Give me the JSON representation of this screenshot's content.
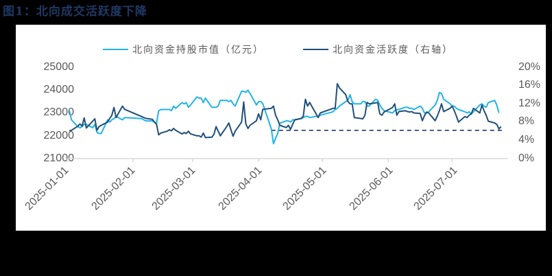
{
  "title": "图1：北向成交活跃度下降",
  "colors": {
    "background": "#000000",
    "panel": "#ffffff",
    "title": "#1f3864",
    "holdings": "#1fb3e8",
    "activity": "#1f4e79",
    "axis": "#d9d9d9",
    "tick_text": "#595959"
  },
  "legend": [
    {
      "label": "北向资金持股市值（亿元）",
      "color": "#1fb3e8"
    },
    {
      "label": "北向资金活跃度（右轴）",
      "color": "#1f4e79"
    }
  ],
  "chart_data": {
    "type": "line",
    "title": "北向成交活跃度下降",
    "xlabel": "",
    "ylabel_left": "北向资金持股市值（亿元）",
    "ylabel_right": "北向资金活跃度",
    "x_ticks": [
      "2025-01-01",
      "2025-02-01",
      "2025-03-01",
      "2025-04-01",
      "2025-05-01",
      "2025-06-01",
      "2025-07-01"
    ],
    "y_left": {
      "ticks": [
        "25000",
        "24000",
        "23000",
        "22000",
        "21000"
      ],
      "range": [
        21000,
        25000
      ]
    },
    "y_right": {
      "ticks": [
        "20%",
        "16%",
        "12%",
        "8%",
        "4%",
        "0%"
      ],
      "range": [
        0,
        20
      ]
    },
    "grid": false,
    "legend_position": "top",
    "reference_line": {
      "axis": "right",
      "value": 6.2,
      "style": "dashed",
      "from": "2025-04-07",
      "to": "2025-07-25"
    },
    "series": [
      {
        "name": "北向资金持股市值（亿元）",
        "axis": "left",
        "points": [
          [
            "2025-01-02",
            23100
          ],
          [
            "2025-01-03",
            22700
          ],
          [
            "2025-01-06",
            22400
          ],
          [
            "2025-01-07",
            22350
          ],
          [
            "2025-01-08",
            22400
          ],
          [
            "2025-01-09",
            22500
          ],
          [
            "2025-01-10",
            22500
          ],
          [
            "2025-01-13",
            22350
          ],
          [
            "2025-01-14",
            22500
          ],
          [
            "2025-01-15",
            22150
          ],
          [
            "2025-01-16",
            22100
          ],
          [
            "2025-01-17",
            22100
          ],
          [
            "2025-01-20",
            22700
          ],
          [
            "2025-01-21",
            22600
          ],
          [
            "2025-01-22",
            22700
          ],
          [
            "2025-01-23",
            22750
          ],
          [
            "2025-01-24",
            22850
          ],
          [
            "2025-01-27",
            22700
          ],
          [
            "2025-01-28",
            22800
          ],
          [
            "2025-02-05",
            22750
          ],
          [
            "2025-02-06",
            22700
          ],
          [
            "2025-02-07",
            22650
          ],
          [
            "2025-02-10",
            22650
          ],
          [
            "2025-02-11",
            22600
          ],
          [
            "2025-02-12",
            22550
          ],
          [
            "2025-02-13",
            23100
          ],
          [
            "2025-02-14",
            23150
          ],
          [
            "2025-02-17",
            23150
          ],
          [
            "2025-02-18",
            23150
          ],
          [
            "2025-02-19",
            23100
          ],
          [
            "2025-02-20",
            23300
          ],
          [
            "2025-02-21",
            23200
          ],
          [
            "2025-02-24",
            23450
          ],
          [
            "2025-02-25",
            23400
          ],
          [
            "2025-02-26",
            23450
          ],
          [
            "2025-02-27",
            23250
          ],
          [
            "2025-02-28",
            23350
          ],
          [
            "2025-03-03",
            23700
          ],
          [
            "2025-03-04",
            23650
          ],
          [
            "2025-03-05",
            23650
          ],
          [
            "2025-03-06",
            23450
          ],
          [
            "2025-03-07",
            23650
          ],
          [
            "2025-03-10",
            23250
          ],
          [
            "2025-03-11",
            23250
          ],
          [
            "2025-03-12",
            23250
          ],
          [
            "2025-03-13",
            23300
          ],
          [
            "2025-03-14",
            23550
          ],
          [
            "2025-03-17",
            23550
          ],
          [
            "2025-03-18",
            23500
          ],
          [
            "2025-03-19",
            23550
          ],
          [
            "2025-03-20",
            23400
          ],
          [
            "2025-03-21",
            23300
          ],
          [
            "2025-03-24",
            23950
          ],
          [
            "2025-03-25",
            23950
          ],
          [
            "2025-03-26",
            23900
          ],
          [
            "2025-03-27",
            24000
          ],
          [
            "2025-03-28",
            23850
          ],
          [
            "2025-03-31",
            23350
          ],
          [
            "2025-04-01",
            23500
          ],
          [
            "2025-04-02",
            23500
          ],
          [
            "2025-04-03",
            23400
          ],
          [
            "2025-04-07",
            22300
          ],
          [
            "2025-04-08",
            21650
          ],
          [
            "2025-04-09",
            21900
          ],
          [
            "2025-04-10",
            22100
          ],
          [
            "2025-04-11",
            22550
          ],
          [
            "2025-04-14",
            22650
          ],
          [
            "2025-04-15",
            22650
          ],
          [
            "2025-04-16",
            22600
          ],
          [
            "2025-04-17",
            22700
          ],
          [
            "2025-04-18",
            22700
          ],
          [
            "2025-04-21",
            22750
          ],
          [
            "2025-04-22",
            22800
          ],
          [
            "2025-04-23",
            22850
          ],
          [
            "2025-04-24",
            22850
          ],
          [
            "2025-04-25",
            22800
          ],
          [
            "2025-04-28",
            22850
          ],
          [
            "2025-04-29",
            22850
          ],
          [
            "2025-04-30",
            22900
          ],
          [
            "2025-05-06",
            23050
          ],
          [
            "2025-05-07",
            23150
          ],
          [
            "2025-05-08",
            23200
          ],
          [
            "2025-05-09",
            23300
          ],
          [
            "2025-05-12",
            23500
          ],
          [
            "2025-05-13",
            23550
          ],
          [
            "2025-05-14",
            23800
          ],
          [
            "2025-05-15",
            23500
          ],
          [
            "2025-05-16",
            23400
          ],
          [
            "2025-05-19",
            23400
          ],
          [
            "2025-05-20",
            23500
          ],
          [
            "2025-05-21",
            23500
          ],
          [
            "2025-05-22",
            23300
          ],
          [
            "2025-05-23",
            23300
          ],
          [
            "2025-05-26",
            23600
          ],
          [
            "2025-05-27",
            23550
          ],
          [
            "2025-05-28",
            23350
          ],
          [
            "2025-05-29",
            23200
          ],
          [
            "2025-05-30",
            23100
          ],
          [
            "2025-06-03",
            23000
          ],
          [
            "2025-06-04",
            23100
          ],
          [
            "2025-06-05",
            23150
          ],
          [
            "2025-06-06",
            23150
          ],
          [
            "2025-06-09",
            23250
          ],
          [
            "2025-06-10",
            23250
          ],
          [
            "2025-06-11",
            23200
          ],
          [
            "2025-06-12",
            23200
          ],
          [
            "2025-06-13",
            23150
          ],
          [
            "2025-06-16",
            23300
          ],
          [
            "2025-06-17",
            23200
          ],
          [
            "2025-06-18",
            23000
          ],
          [
            "2025-06-19",
            23000
          ],
          [
            "2025-06-20",
            23050
          ],
          [
            "2025-06-23",
            23350
          ],
          [
            "2025-06-24",
            23550
          ],
          [
            "2025-06-25",
            23900
          ],
          [
            "2025-06-26",
            23850
          ],
          [
            "2025-06-27",
            23600
          ],
          [
            "2025-06-30",
            23400
          ],
          [
            "2025-07-01",
            23300
          ],
          [
            "2025-07-02",
            23300
          ],
          [
            "2025-07-03",
            23200
          ],
          [
            "2025-07-04",
            23150
          ],
          [
            "2025-07-07",
            23050
          ],
          [
            "2025-07-08",
            23000
          ],
          [
            "2025-07-09",
            23050
          ],
          [
            "2025-07-10",
            22950
          ],
          [
            "2025-07-11",
            23050
          ],
          [
            "2025-07-14",
            23350
          ],
          [
            "2025-07-15",
            23400
          ],
          [
            "2025-07-16",
            23300
          ],
          [
            "2025-07-17",
            23250
          ],
          [
            "2025-07-18",
            23450
          ],
          [
            "2025-07-21",
            23550
          ],
          [
            "2025-07-22",
            23350
          ],
          [
            "2025-07-23",
            23000
          ]
        ]
      },
      {
        "name": "北向资金活跃度（右轴）",
        "axis": "right",
        "points": [
          [
            "2025-01-02",
            6.1
          ],
          [
            "2025-01-03",
            6.2
          ],
          [
            "2025-01-06",
            7.1
          ],
          [
            "2025-01-07",
            7.6
          ],
          [
            "2025-01-08",
            7.1
          ],
          [
            "2025-01-09",
            8.9
          ],
          [
            "2025-01-10",
            6.7
          ],
          [
            "2025-01-13",
            8.2
          ],
          [
            "2025-01-14",
            8.7
          ],
          [
            "2025-01-15",
            6.2
          ],
          [
            "2025-01-16",
            7.0
          ],
          [
            "2025-01-17",
            7.3
          ],
          [
            "2025-01-20",
            8.0
          ],
          [
            "2025-01-21",
            8.8
          ],
          [
            "2025-01-22",
            9.5
          ],
          [
            "2025-01-23",
            11.2
          ],
          [
            "2025-01-24",
            9.0
          ],
          [
            "2025-01-27",
            11.5
          ],
          [
            "2025-01-28",
            10.8
          ],
          [
            "2025-02-05",
            9.2
          ],
          [
            "2025-02-06",
            9.0
          ],
          [
            "2025-02-07",
            8.8
          ],
          [
            "2025-02-10",
            8.6
          ],
          [
            "2025-02-11",
            8.0
          ],
          [
            "2025-02-12",
            7.5
          ],
          [
            "2025-02-13",
            5.2
          ],
          [
            "2025-02-14",
            5.6
          ],
          [
            "2025-02-17",
            6.0
          ],
          [
            "2025-02-18",
            6.3
          ],
          [
            "2025-02-19",
            6.1
          ],
          [
            "2025-02-20",
            6.6
          ],
          [
            "2025-02-21",
            6.2
          ],
          [
            "2025-02-24",
            5.4
          ],
          [
            "2025-02-25",
            5.7
          ],
          [
            "2025-02-26",
            5.5
          ],
          [
            "2025-02-27",
            6.0
          ],
          [
            "2025-02-28",
            5.4
          ],
          [
            "2025-03-03",
            5.0
          ],
          [
            "2025-03-04",
            5.0
          ],
          [
            "2025-03-05",
            4.7
          ],
          [
            "2025-03-06",
            5.6
          ],
          [
            "2025-03-07",
            4.6
          ],
          [
            "2025-03-10",
            4.7
          ],
          [
            "2025-03-11",
            5.3
          ],
          [
            "2025-03-12",
            7.0
          ],
          [
            "2025-03-13",
            6.0
          ],
          [
            "2025-03-14",
            5.0
          ],
          [
            "2025-03-17",
            7.0
          ],
          [
            "2025-03-18",
            7.8
          ],
          [
            "2025-03-19",
            6.3
          ],
          [
            "2025-03-20",
            4.9
          ],
          [
            "2025-03-21",
            6.0
          ],
          [
            "2025-03-24",
            8.0
          ],
          [
            "2025-03-25",
            12.4
          ],
          [
            "2025-03-26",
            7.6
          ],
          [
            "2025-03-27",
            6.6
          ],
          [
            "2025-03-28",
            7.3
          ],
          [
            "2025-03-31",
            8.3
          ],
          [
            "2025-04-01",
            9.8
          ],
          [
            "2025-04-02",
            8.5
          ],
          [
            "2025-04-03",
            10.8
          ],
          [
            "2025-04-07",
            11.0
          ],
          [
            "2025-04-08",
            11.5
          ],
          [
            "2025-04-09",
            9.5
          ],
          [
            "2025-04-10",
            8.5
          ],
          [
            "2025-04-11",
            7.3
          ],
          [
            "2025-04-14",
            6.8
          ],
          [
            "2025-04-15",
            7.3
          ],
          [
            "2025-04-16",
            6.4
          ],
          [
            "2025-04-17",
            7.5
          ],
          [
            "2025-04-18",
            8.5
          ],
          [
            "2025-04-21",
            8.8
          ],
          [
            "2025-04-22",
            9.3
          ],
          [
            "2025-04-23",
            13.0
          ],
          [
            "2025-04-24",
            11.5
          ],
          [
            "2025-04-25",
            12.3
          ],
          [
            "2025-04-28",
            9.8
          ],
          [
            "2025-04-29",
            9.0
          ],
          [
            "2025-04-30",
            10.0
          ],
          [
            "2025-05-06",
            11.0
          ],
          [
            "2025-05-07",
            11.0
          ],
          [
            "2025-05-08",
            16.4
          ],
          [
            "2025-05-09",
            15.5
          ],
          [
            "2025-05-12",
            14.0
          ],
          [
            "2025-05-13",
            12.5
          ],
          [
            "2025-05-14",
            12.0
          ],
          [
            "2025-05-15",
            12.0
          ],
          [
            "2025-05-16",
            9.0
          ],
          [
            "2025-05-19",
            8.8
          ],
          [
            "2025-05-20",
            8.7
          ],
          [
            "2025-05-21",
            9.5
          ],
          [
            "2025-05-22",
            12.3
          ],
          [
            "2025-05-23",
            12.0
          ],
          [
            "2025-05-26",
            12.2
          ],
          [
            "2025-05-27",
            12.3
          ],
          [
            "2025-05-28",
            9.8
          ],
          [
            "2025-05-29",
            9.5
          ],
          [
            "2025-05-30",
            10.2
          ],
          [
            "2025-06-03",
            11.2
          ],
          [
            "2025-06-04",
            12.0
          ],
          [
            "2025-06-05",
            9.5
          ],
          [
            "2025-06-06",
            10.3
          ],
          [
            "2025-06-09",
            10.5
          ],
          [
            "2025-06-10",
            10.3
          ],
          [
            "2025-06-11",
            10.2
          ],
          [
            "2025-06-12",
            10.3
          ],
          [
            "2025-06-13",
            10.0
          ],
          [
            "2025-06-16",
            9.9
          ],
          [
            "2025-06-17",
            8.3
          ],
          [
            "2025-06-18",
            9.4
          ],
          [
            "2025-06-19",
            10.2
          ],
          [
            "2025-06-20",
            10.0
          ],
          [
            "2025-06-23",
            8.3
          ],
          [
            "2025-06-24",
            9.3
          ],
          [
            "2025-06-25",
            10.5
          ],
          [
            "2025-06-26",
            12.0
          ],
          [
            "2025-06-27",
            10.3
          ],
          [
            "2025-06-30",
            11.0
          ],
          [
            "2025-07-01",
            11.5
          ],
          [
            "2025-07-02",
            10.5
          ],
          [
            "2025-07-03",
            9.3
          ],
          [
            "2025-07-04",
            8.0
          ],
          [
            "2025-07-07",
            9.2
          ],
          [
            "2025-07-08",
            9.0
          ],
          [
            "2025-07-09",
            9.5
          ],
          [
            "2025-07-10",
            9.8
          ],
          [
            "2025-07-11",
            11.0
          ],
          [
            "2025-07-14",
            10.0
          ],
          [
            "2025-07-15",
            11.7
          ],
          [
            "2025-07-16",
            10.5
          ],
          [
            "2025-07-17",
            9.5
          ],
          [
            "2025-07-18",
            8.2
          ],
          [
            "2025-07-21",
            7.8
          ],
          [
            "2025-07-22",
            7.5
          ],
          [
            "2025-07-23",
            6.5
          ],
          [
            "2025-07-24",
            7.0
          ]
        ]
      }
    ]
  }
}
